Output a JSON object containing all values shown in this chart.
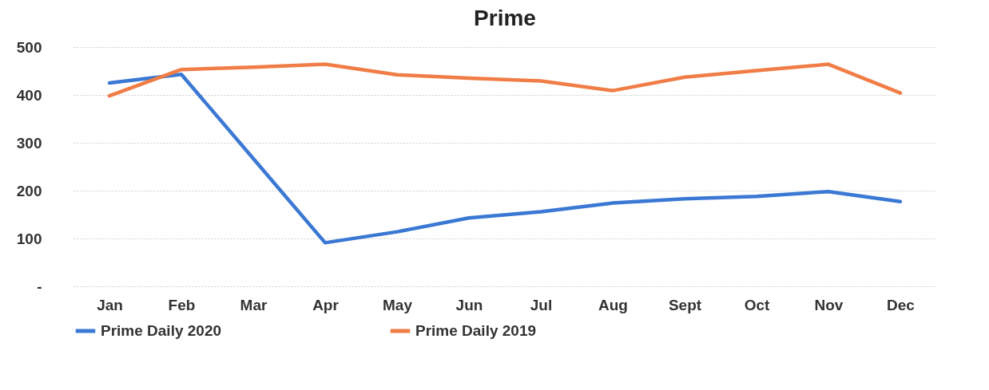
{
  "chart_data": {
    "type": "line",
    "title": "Prime",
    "categories": [
      "Jan",
      "Feb",
      "Mar",
      "Apr",
      "May",
      "Jun",
      "Jul",
      "Aug",
      "Sept",
      "Oct",
      "Nov",
      "Dec"
    ],
    "series": [
      {
        "name": "Prime Daily 2020",
        "color": "#3a78d4",
        "values": [
          425,
          443,
          267,
          91,
          114,
          143,
          156,
          174,
          183,
          188,
          198,
          177
        ]
      },
      {
        "name": "Prime Daily 2019",
        "color": "#f07d45",
        "values": [
          398,
          453,
          458,
          464,
          442,
          435,
          429,
          409,
          437,
          451,
          464,
          404
        ]
      }
    ],
    "ylim": [
      0,
      500
    ],
    "yticks": [
      {
        "value": 0,
        "label": "-"
      },
      100,
      200,
      300,
      400,
      500
    ],
    "grid": "y",
    "legend": "bottom",
    "marker": "none",
    "line_style": "solid"
  }
}
